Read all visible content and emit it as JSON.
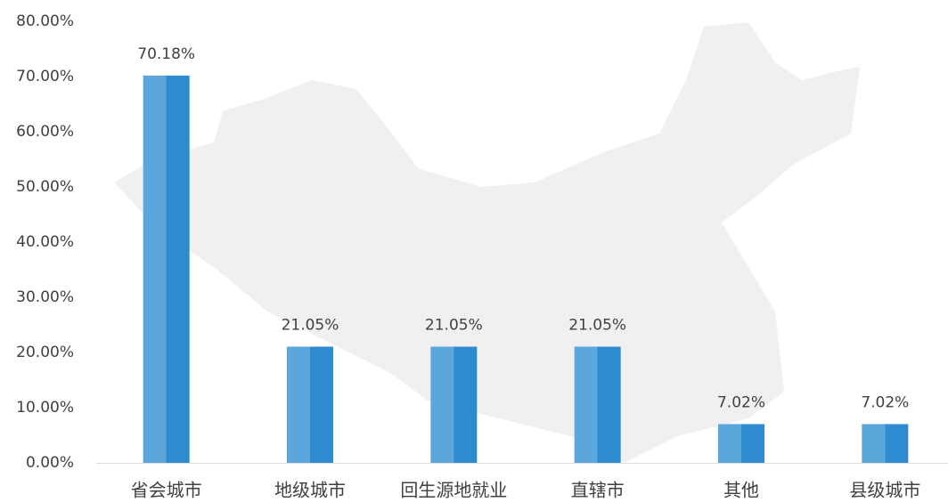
{
  "chart_data": {
    "type": "bar",
    "categories": [
      "省会城市",
      "地级城市",
      "回生源地就业",
      "直辖市",
      "其他",
      "县级城市"
    ],
    "values": [
      70.18,
      21.05,
      21.05,
      21.05,
      7.02,
      7.02
    ],
    "value_labels": [
      "70.18%",
      "21.05%",
      "21.05%",
      "21.05%",
      "7.02%",
      "7.02%"
    ],
    "colors": [
      "#5ba7dc",
      "#2e8bd0"
    ],
    "ylim": [
      0,
      80
    ],
    "yticks": [
      {
        "value": 0,
        "label": "0.00%"
      },
      {
        "value": 10,
        "label": "10.00%"
      },
      {
        "value": 20,
        "label": "20.00%"
      },
      {
        "value": 30,
        "label": "30.00%"
      },
      {
        "value": 40,
        "label": "40.00%"
      },
      {
        "value": 50,
        "label": "50.00%"
      },
      {
        "value": 60,
        "label": "60.00%"
      },
      {
        "value": 70,
        "label": "70.00%"
      },
      {
        "value": 80,
        "label": "80.00%"
      }
    ],
    "grid": false
  }
}
